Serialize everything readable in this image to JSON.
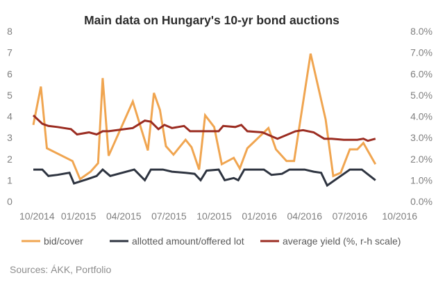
{
  "chart_data": {
    "type": "line",
    "title": "Main data on Hungary's 10-yr bond auctions",
    "source": "Sources: ÁKK, Portfolio",
    "y_left": {
      "min": 0,
      "max": 8,
      "ticks": [
        "0",
        "1",
        "2",
        "3",
        "4",
        "5",
        "6",
        "7",
        "8"
      ]
    },
    "y_right": {
      "min": 0,
      "max": 8,
      "ticks": [
        "0.0%",
        "1.0%",
        "2.0%",
        "3.0%",
        "4.0%",
        "5.0%",
        "6.0%",
        "7.0%",
        "8.0%"
      ]
    },
    "x_range": [
      0,
      24
    ],
    "x_ticks": [
      {
        "x": 0,
        "label": "10/2014"
      },
      {
        "x": 3,
        "label": "01/2015"
      },
      {
        "x": 6,
        "label": "04/2015"
      },
      {
        "x": 9,
        "label": "07/2015"
      },
      {
        "x": 12,
        "label": "10/2015"
      },
      {
        "x": 15,
        "label": "01/2016"
      },
      {
        "x": 18,
        "label": "04/2016"
      },
      {
        "x": 21,
        "label": "07/2016"
      },
      {
        "x": 24,
        "label": "10/2016"
      }
    ],
    "series": [
      {
        "name": "bid/cover",
        "color": "#F0A550",
        "axis": "left",
        "points": [
          [
            0,
            3.6
          ],
          [
            0.5,
            5.4
          ],
          [
            0.9,
            2.5
          ],
          [
            2.6,
            1.9
          ],
          [
            3.1,
            1.05
          ],
          [
            3.8,
            1.4
          ],
          [
            4.3,
            1.8
          ],
          [
            4.6,
            5.8
          ],
          [
            5.0,
            2.15
          ],
          [
            6.6,
            4.7
          ],
          [
            7.6,
            2.4
          ],
          [
            8.0,
            5.1
          ],
          [
            8.4,
            4.3
          ],
          [
            8.8,
            2.6
          ],
          [
            9.3,
            2.2
          ],
          [
            10.1,
            2.9
          ],
          [
            10.5,
            2.55
          ],
          [
            11.0,
            1.5
          ],
          [
            11.4,
            4.05
          ],
          [
            12.0,
            3.5
          ],
          [
            12.5,
            1.75
          ],
          [
            13.3,
            2.05
          ],
          [
            13.7,
            1.55
          ],
          [
            14.2,
            2.5
          ],
          [
            15.6,
            3.45
          ],
          [
            16.1,
            2.45
          ],
          [
            16.8,
            1.9
          ],
          [
            17.3,
            1.9
          ],
          [
            18.4,
            6.95
          ],
          [
            19.4,
            3.85
          ],
          [
            19.9,
            1.2
          ],
          [
            20.4,
            1.35
          ],
          [
            21.0,
            2.45
          ],
          [
            21.5,
            2.45
          ],
          [
            21.9,
            2.75
          ],
          [
            22.7,
            1.75
          ]
        ]
      },
      {
        "name": "allotted amount/offered lot",
        "color": "#2E3440",
        "axis": "left",
        "points": [
          [
            0,
            1.5
          ],
          [
            0.6,
            1.5
          ],
          [
            1.0,
            1.2
          ],
          [
            1.6,
            1.25
          ],
          [
            2.4,
            1.35
          ],
          [
            2.7,
            0.85
          ],
          [
            3.6,
            1.05
          ],
          [
            4.2,
            1.2
          ],
          [
            4.6,
            1.5
          ],
          [
            5.1,
            1.2
          ],
          [
            6.7,
            1.5
          ],
          [
            7.4,
            1.0
          ],
          [
            7.8,
            1.5
          ],
          [
            8.6,
            1.5
          ],
          [
            9.2,
            1.4
          ],
          [
            10.1,
            1.35
          ],
          [
            10.7,
            1.3
          ],
          [
            11.1,
            1.0
          ],
          [
            11.5,
            1.45
          ],
          [
            12.3,
            1.5
          ],
          [
            12.7,
            1.0
          ],
          [
            13.3,
            1.1
          ],
          [
            13.6,
            1.0
          ],
          [
            14.0,
            1.5
          ],
          [
            15.3,
            1.5
          ],
          [
            15.8,
            1.25
          ],
          [
            16.5,
            1.3
          ],
          [
            17.0,
            1.5
          ],
          [
            18.0,
            1.5
          ],
          [
            18.6,
            1.4
          ],
          [
            19.1,
            1.35
          ],
          [
            19.5,
            0.75
          ],
          [
            20.4,
            1.2
          ],
          [
            21.0,
            1.5
          ],
          [
            21.8,
            1.5
          ],
          [
            22.7,
            1.0
          ]
        ]
      },
      {
        "name": "average yield (%, r-h scale)",
        "color": "#9B2C21",
        "axis": "right",
        "points": [
          [
            0,
            4.05
          ],
          [
            0.6,
            3.65
          ],
          [
            1.0,
            3.55
          ],
          [
            1.6,
            3.5
          ],
          [
            2.5,
            3.4
          ],
          [
            2.9,
            3.15
          ],
          [
            3.7,
            3.25
          ],
          [
            4.2,
            3.15
          ],
          [
            4.6,
            3.3
          ],
          [
            5.0,
            3.3
          ],
          [
            6.6,
            3.45
          ],
          [
            7.4,
            3.8
          ],
          [
            7.8,
            3.75
          ],
          [
            8.3,
            3.4
          ],
          [
            8.7,
            3.6
          ],
          [
            9.2,
            3.45
          ],
          [
            10.0,
            3.55
          ],
          [
            10.4,
            3.3
          ],
          [
            12.3,
            3.3
          ],
          [
            12.6,
            3.55
          ],
          [
            13.4,
            3.5
          ],
          [
            13.8,
            3.6
          ],
          [
            14.2,
            3.3
          ],
          [
            15.2,
            3.25
          ],
          [
            15.7,
            3.1
          ],
          [
            16.2,
            2.95
          ],
          [
            17.4,
            3.3
          ],
          [
            17.9,
            3.35
          ],
          [
            18.6,
            3.25
          ],
          [
            19.3,
            2.95
          ],
          [
            19.8,
            2.95
          ],
          [
            20.6,
            2.9
          ],
          [
            21.5,
            2.9
          ],
          [
            21.9,
            2.95
          ],
          [
            22.2,
            2.85
          ],
          [
            22.7,
            2.95
          ]
        ]
      }
    ]
  }
}
